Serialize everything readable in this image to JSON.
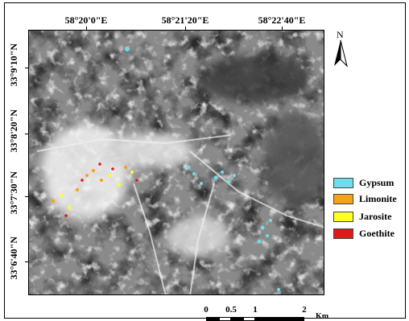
{
  "longitude_labels": [
    "58°20'0\"E",
    "58°21'20\"E",
    "58°22'40\"E"
  ],
  "latitude_labels": [
    "33°9'10\"N",
    "33°8'20\"N",
    "33°7'30\"N",
    "33°6'40\"N"
  ],
  "north_arrow": {
    "label": "N",
    "icon": "north-arrow-icon"
  },
  "legend": [
    {
      "label": "Gypsum",
      "color": "#6fdcec"
    },
    {
      "label": "Limonite",
      "color": "#f5a21a"
    },
    {
      "label": "Jarosite",
      "color": "#ffff22"
    },
    {
      "label": "Goethite",
      "color": "#e01818"
    }
  ],
  "scale_bar": {
    "labels": [
      "0",
      "0.5",
      "1",
      "2"
    ],
    "unit": "Km"
  }
}
